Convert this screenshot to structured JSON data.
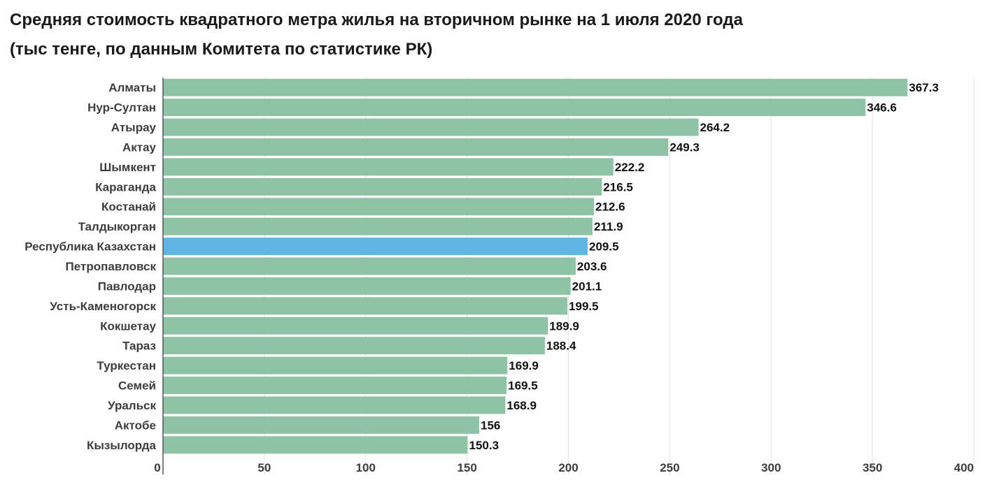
{
  "chart_data": {
    "type": "bar",
    "orientation": "horizontal",
    "title": "Средняя стоимость квадратного метра жилья на вторичном рынке на 1 июля 2020 года",
    "subtitle": "(тыс тенге, по данным Комитета по статистике РК)",
    "categories": [
      "Алматы",
      "Нур-Султан",
      "Атырау",
      "Актау",
      "Шымкент",
      "Караганда",
      "Костанай",
      "Талдыкорган",
      "Республика Казахстан",
      "Петропавловск",
      "Павлодар",
      "Усть-Каменогорск",
      "Кокшетау",
      "Тараз",
      "Туркестан",
      "Семей",
      "Уральск",
      "Актобе",
      "Кызылорда"
    ],
    "values": [
      367.3,
      346.6,
      264.2,
      249.3,
      222.2,
      216.5,
      212.6,
      211.9,
      209.5,
      203.6,
      201.1,
      199.5,
      189.9,
      188.4,
      169.9,
      169.5,
      168.9,
      156,
      150.3
    ],
    "value_labels": [
      "367.3",
      "346.6",
      "264.2",
      "249.3",
      "222.2",
      "216.5",
      "212.6",
      "211.9",
      "209.5",
      "203.6",
      "201.1",
      "199.5",
      "189.9",
      "188.4",
      "169.9",
      "169.5",
      "168.9",
      "156",
      "150.3"
    ],
    "highlight_category": "Республика Казахстан",
    "xlim": [
      0,
      400
    ],
    "xticks": [
      "0",
      "50",
      "100",
      "150",
      "200",
      "250",
      "300",
      "350",
      "400"
    ],
    "xlabel": "",
    "ylabel": "",
    "grid": true,
    "legend": "none",
    "colors": {
      "bar": "#8ec3a5",
      "highlight": "#5fb6e5"
    }
  }
}
